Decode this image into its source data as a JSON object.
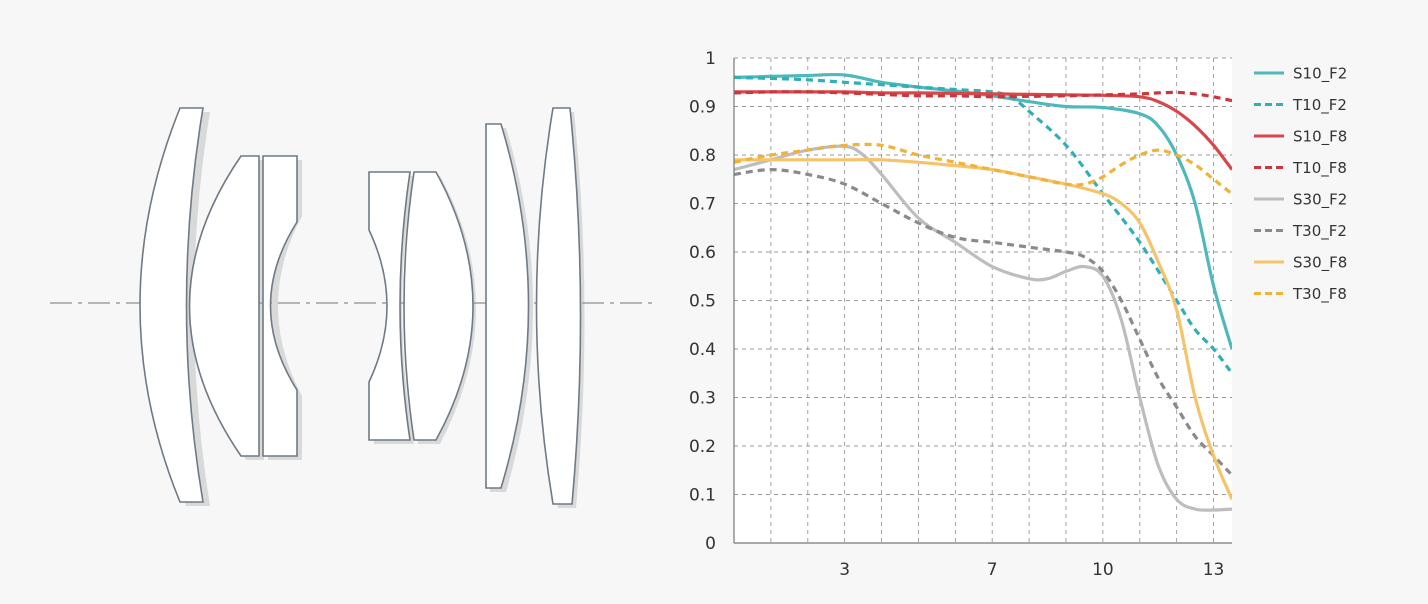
{
  "lens_diagram": {
    "elements": [
      "element-1",
      "element-2",
      "element-3",
      "element-4",
      "element-5",
      "element-6",
      "element-7"
    ]
  },
  "chart_data": {
    "type": "line",
    "title": "",
    "xlabel": "",
    "ylabel": "",
    "xlim": [
      0,
      13.5
    ],
    "ylim": [
      0,
      1
    ],
    "x_ticks": [
      3,
      7,
      10,
      13
    ],
    "y_ticks": [
      0,
      0.1,
      0.2,
      0.3,
      0.4,
      0.5,
      0.6,
      0.7,
      0.8,
      0.9,
      1
    ],
    "grid": true,
    "legend_position": "right",
    "series": [
      {
        "name": "S10_F2",
        "color": "#4fb8bd",
        "dash": false,
        "points": [
          [
            0,
            0.96
          ],
          [
            1,
            0.962
          ],
          [
            2,
            0.964
          ],
          [
            3,
            0.965
          ],
          [
            4,
            0.95
          ],
          [
            5,
            0.94
          ],
          [
            6,
            0.932
          ],
          [
            7,
            0.922
          ],
          [
            8,
            0.91
          ],
          [
            9,
            0.9
          ],
          [
            10,
            0.898
          ],
          [
            11,
            0.885
          ],
          [
            11.5,
            0.86
          ],
          [
            12,
            0.8
          ],
          [
            12.5,
            0.7
          ],
          [
            13,
            0.53
          ],
          [
            13.5,
            0.4
          ]
        ]
      },
      {
        "name": "T10_F2",
        "color": "#2fb0b8",
        "dash": true,
        "points": [
          [
            0,
            0.96
          ],
          [
            1,
            0.958
          ],
          [
            2,
            0.955
          ],
          [
            3,
            0.95
          ],
          [
            4,
            0.945
          ],
          [
            5,
            0.94
          ],
          [
            6,
            0.935
          ],
          [
            7,
            0.93
          ],
          [
            7.5,
            0.92
          ],
          [
            8,
            0.89
          ],
          [
            9,
            0.82
          ],
          [
            10,
            0.72
          ],
          [
            11,
            0.62
          ],
          [
            12,
            0.5
          ],
          [
            12.5,
            0.44
          ],
          [
            13,
            0.4
          ],
          [
            13.5,
            0.35
          ]
        ]
      },
      {
        "name": "S10_F8",
        "color": "#d9474b",
        "dash": false,
        "points": [
          [
            0,
            0.93
          ],
          [
            1,
            0.93
          ],
          [
            2,
            0.93
          ],
          [
            3,
            0.93
          ],
          [
            4,
            0.928
          ],
          [
            5,
            0.928
          ],
          [
            6,
            0.927
          ],
          [
            7,
            0.926
          ],
          [
            8,
            0.925
          ],
          [
            9,
            0.924
          ],
          [
            10,
            0.923
          ],
          [
            11,
            0.92
          ],
          [
            11.5,
            0.91
          ],
          [
            12,
            0.89
          ],
          [
            12.5,
            0.86
          ],
          [
            13,
            0.82
          ],
          [
            13.5,
            0.77
          ]
        ]
      },
      {
        "name": "T10_F8",
        "color": "#c8383d",
        "dash": true,
        "points": [
          [
            0,
            0.928
          ],
          [
            1,
            0.93
          ],
          [
            2,
            0.93
          ],
          [
            3,
            0.928
          ],
          [
            4,
            0.925
          ],
          [
            5,
            0.922
          ],
          [
            6,
            0.922
          ],
          [
            7,
            0.92
          ],
          [
            8,
            0.921
          ],
          [
            9,
            0.922
          ],
          [
            10,
            0.924
          ],
          [
            11,
            0.926
          ],
          [
            11.5,
            0.928
          ],
          [
            12,
            0.929
          ],
          [
            12.5,
            0.926
          ],
          [
            13,
            0.92
          ],
          [
            13.5,
            0.912
          ]
        ]
      },
      {
        "name": "S30_F2",
        "color": "#bdbdbd",
        "dash": false,
        "points": [
          [
            0,
            0.77
          ],
          [
            1,
            0.79
          ],
          [
            2,
            0.81
          ],
          [
            3,
            0.818
          ],
          [
            3.5,
            0.8
          ],
          [
            4,
            0.76
          ],
          [
            5,
            0.67
          ],
          [
            6,
            0.62
          ],
          [
            7,
            0.57
          ],
          [
            8,
            0.545
          ],
          [
            8.5,
            0.545
          ],
          [
            9,
            0.56
          ],
          [
            9.5,
            0.57
          ],
          [
            10,
            0.55
          ],
          [
            10.5,
            0.46
          ],
          [
            11,
            0.3
          ],
          [
            11.5,
            0.16
          ],
          [
            12,
            0.09
          ],
          [
            12.5,
            0.07
          ],
          [
            13,
            0.068
          ],
          [
            13.5,
            0.07
          ]
        ]
      },
      {
        "name": "T30_F2",
        "color": "#8a8a8a",
        "dash": true,
        "points": [
          [
            0,
            0.76
          ],
          [
            1,
            0.77
          ],
          [
            2,
            0.76
          ],
          [
            3,
            0.74
          ],
          [
            4,
            0.7
          ],
          [
            5,
            0.66
          ],
          [
            6,
            0.63
          ],
          [
            7,
            0.62
          ],
          [
            8,
            0.61
          ],
          [
            9,
            0.6
          ],
          [
            9.5,
            0.59
          ],
          [
            10,
            0.56
          ],
          [
            10.5,
            0.5
          ],
          [
            11,
            0.42
          ],
          [
            11.5,
            0.34
          ],
          [
            12,
            0.28
          ],
          [
            12.5,
            0.22
          ],
          [
            13,
            0.18
          ],
          [
            13.5,
            0.14
          ]
        ]
      },
      {
        "name": "S30_F8",
        "color": "#f5c46a",
        "dash": false,
        "points": [
          [
            0,
            0.79
          ],
          [
            1,
            0.79
          ],
          [
            2,
            0.79
          ],
          [
            3,
            0.79
          ],
          [
            4,
            0.79
          ],
          [
            5,
            0.785
          ],
          [
            6,
            0.778
          ],
          [
            7,
            0.77
          ],
          [
            8,
            0.755
          ],
          [
            9,
            0.74
          ],
          [
            10,
            0.72
          ],
          [
            10.5,
            0.7
          ],
          [
            11,
            0.66
          ],
          [
            11.5,
            0.58
          ],
          [
            12,
            0.48
          ],
          [
            12.5,
            0.3
          ],
          [
            13,
            0.18
          ],
          [
            13.5,
            0.09
          ]
        ]
      },
      {
        "name": "T30_F8",
        "color": "#f0b237",
        "dash": true,
        "points": [
          [
            0,
            0.785
          ],
          [
            1,
            0.8
          ],
          [
            2,
            0.81
          ],
          [
            3,
            0.82
          ],
          [
            4,
            0.82
          ],
          [
            5,
            0.8
          ],
          [
            6,
            0.785
          ],
          [
            7,
            0.77
          ],
          [
            8,
            0.755
          ],
          [
            9,
            0.74
          ],
          [
            9.5,
            0.74
          ],
          [
            10,
            0.755
          ],
          [
            10.5,
            0.78
          ],
          [
            11,
            0.8
          ],
          [
            11.5,
            0.81
          ],
          [
            12,
            0.8
          ],
          [
            12.5,
            0.78
          ],
          [
            13,
            0.75
          ],
          [
            13.5,
            0.72
          ]
        ]
      }
    ]
  }
}
